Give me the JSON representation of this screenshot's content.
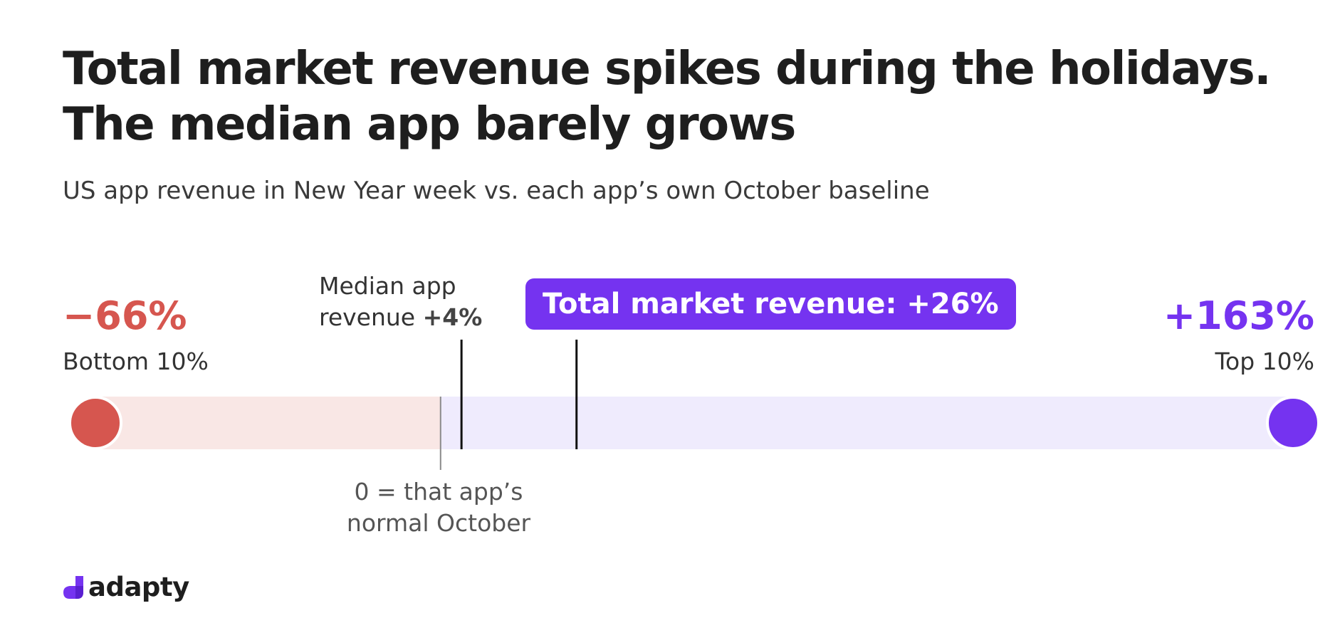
{
  "title_line1": "Total market revenue spikes during the holidays.",
  "title_line2": "The median app barely grows",
  "subtitle": "US app revenue in New Year week vs. each app’s own October baseline",
  "colors": {
    "bottom": "#d6564f",
    "top": "#7533f0",
    "bottom_track": "#f9e7e5",
    "top_track": "#efebfd"
  },
  "chart_data": {
    "type": "range",
    "unit": "%",
    "xlim": [
      -66,
      163
    ],
    "points": [
      {
        "name": "Bottom 10%",
        "value": -66,
        "label": "−66%"
      },
      {
        "name": "Median app revenue",
        "value": 4,
        "label": "+4%"
      },
      {
        "name": "Total market revenue",
        "value": 26,
        "label": "+26%"
      },
      {
        "name": "Top 10%",
        "value": 163,
        "label": "+163%"
      }
    ],
    "baseline": {
      "value": 0,
      "label_line1": "0 = that app’s",
      "label_line2": "normal October"
    }
  },
  "annotations": {
    "bottom_pct": "−66%",
    "bottom_label": "Bottom 10%",
    "top_pct": "+163%",
    "top_label": "Top 10%",
    "median_line1": "Median app",
    "median_line2": "revenue",
    "median_value": "+4%",
    "market_box": "Total market revenue: +26%"
  },
  "logo": {
    "text": "adapty"
  }
}
